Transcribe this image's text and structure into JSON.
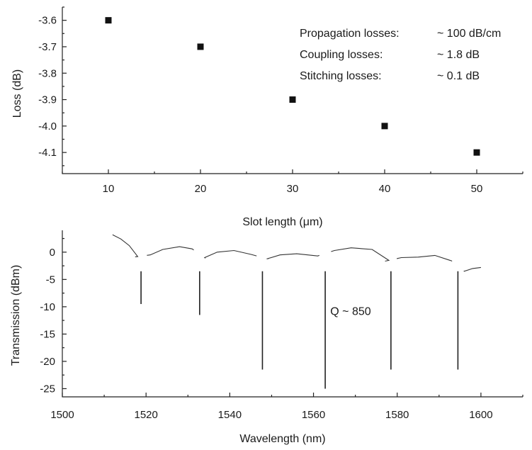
{
  "chart_data": [
    {
      "type": "scatter",
      "xlabel": "Slot length (μm)",
      "ylabel": "Loss (dB)",
      "x": [
        10,
        20,
        30,
        40,
        50
      ],
      "y": [
        -3.6,
        -3.7,
        -3.9,
        -4.0,
        -4.1
      ],
      "xlim": [
        5,
        55
      ],
      "ylim": [
        -4.18,
        -3.55
      ],
      "xticks": [
        10,
        20,
        30,
        40,
        50
      ],
      "yticks": [
        -3.6,
        -3.7,
        -3.8,
        -3.9,
        -4.0,
        -4.1
      ],
      "ytick_labels": [
        "-3.6",
        "-3.7",
        "-3.8",
        "-3.9",
        "-4.0",
        "-4.1"
      ],
      "marker": "square",
      "annotations": [
        {
          "label": "Propagation losses:",
          "value": "~ 100 dB/cm"
        },
        {
          "label": "Coupling losses:",
          "value": "~ 1.8 dB"
        },
        {
          "label": "Stitching losses:",
          "value": "~ 0.1 dB"
        }
      ]
    },
    {
      "type": "line",
      "xlabel": "Wavelength (nm)",
      "ylabel": "Transmission (dBm)",
      "xlim": [
        1500,
        1610
      ],
      "ylim": [
        -26.5,
        4
      ],
      "xticks": [
        1500,
        1520,
        1540,
        1560,
        1580,
        1600
      ],
      "yticks": [
        0,
        -5,
        -10,
        -15,
        -20,
        -25
      ],
      "baseline": [
        {
          "x": 1512,
          "y": 3.2
        },
        {
          "x": 1514,
          "y": 2.4
        },
        {
          "x": 1516,
          "y": 1.2
        },
        {
          "x": 1518,
          "y": -0.8
        },
        {
          "x": 1521,
          "y": -0.5
        },
        {
          "x": 1524,
          "y": 0.5
        },
        {
          "x": 1528,
          "y": 1.0
        },
        {
          "x": 1531,
          "y": 0.6
        },
        {
          "x": 1534,
          "y": -1.0
        },
        {
          "x": 1537,
          "y": 0.0
        },
        {
          "x": 1541,
          "y": 0.3
        },
        {
          "x": 1545,
          "y": -0.4
        },
        {
          "x": 1549,
          "y": -1.2
        },
        {
          "x": 1552,
          "y": -0.5
        },
        {
          "x": 1556,
          "y": -0.3
        },
        {
          "x": 1561,
          "y": -0.7
        },
        {
          "x": 1565,
          "y": 0.3
        },
        {
          "x": 1569,
          "y": 0.8
        },
        {
          "x": 1574,
          "y": 0.5
        },
        {
          "x": 1578,
          "y": -1.5
        },
        {
          "x": 1581,
          "y": -1.0
        },
        {
          "x": 1585,
          "y": -0.9
        },
        {
          "x": 1589,
          "y": -0.6
        },
        {
          "x": 1593,
          "y": -1.6
        },
        {
          "x": 1596,
          "y": -3.5
        },
        {
          "x": 1598,
          "y": -3.0
        },
        {
          "x": 1600,
          "y": -2.8
        }
      ],
      "resonances": [
        {
          "x": 1518.8,
          "min": -9.5
        },
        {
          "x": 1532.8,
          "min": -11.5
        },
        {
          "x": 1547.8,
          "min": -21.5
        },
        {
          "x": 1562.8,
          "min": -25.0
        },
        {
          "x": 1578.5,
          "min": -21.5
        },
        {
          "x": 1594.5,
          "min": -21.5
        }
      ],
      "annotations": [
        {
          "text": "Q ~ 850",
          "x": 1563,
          "y": -11
        }
      ]
    }
  ]
}
